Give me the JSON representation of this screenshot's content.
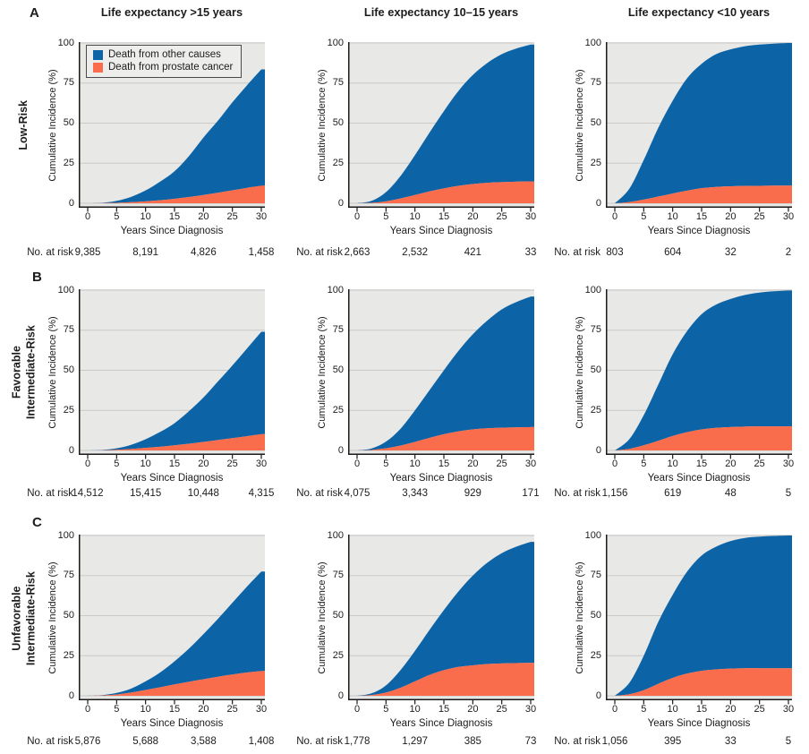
{
  "figure": {
    "column_titles": [
      "Life expectancy >15 years",
      "Life expectancy 10–15 years",
      "Life expectancy <10 years"
    ],
    "panel_letters": [
      "A",
      "B",
      "C"
    ],
    "row_labels": [
      [
        "Low-Risk"
      ],
      [
        "Favorable",
        "Intermediate-Risk"
      ],
      [
        "Unfavorable",
        "Intermediate-Risk"
      ]
    ],
    "y_axis_label": "Cumulative Incidence (%)",
    "x_axis_label": "Years Since Diagnosis",
    "no_at_risk_label": "No. at risk",
    "legend": {
      "items": [
        {
          "label": "Death from other causes",
          "color": "#0c64a7"
        },
        {
          "label": "Death from prostate cancer",
          "color": "#f96c4c"
        }
      ]
    },
    "colors": {
      "blue": "#0c64a7",
      "orange": "#f96c4c",
      "plot_bg": "#e8e8e6",
      "gridline": "#c9c9c7",
      "axis": "#1a1a1a",
      "text": "#1c1c1c"
    }
  },
  "chart_data": [
    {
      "type": "area",
      "stacking": "values are cumulative incidence %; 'Death from other causes' values are the stacked top edge (total mortality)",
      "row": "Low-Risk",
      "column": "Life expectancy >15 years",
      "x": [
        0,
        2.5,
        5,
        7.5,
        10,
        12.5,
        15,
        17.5,
        20,
        22.5,
        25,
        27.5,
        30
      ],
      "x_ticks": [
        0,
        5,
        10,
        15,
        20,
        25,
        30
      ],
      "y_ticks": [
        0,
        25,
        50,
        75,
        100
      ],
      "ylim": [
        0,
        100
      ],
      "series": [
        {
          "name": "Death from prostate cancer",
          "color_key": "orange",
          "values": [
            0,
            0.1,
            0.3,
            0.7,
            1.2,
            1.9,
            2.8,
            3.9,
            5.2,
            6.6,
            8.1,
            9.6,
            11
          ]
        },
        {
          "name": "Death from other causes",
          "color_key": "blue",
          "values": [
            0,
            0.3,
            1.5,
            4,
            8,
            13.5,
            20,
            29.5,
            41,
            51.5,
            63,
            73.5,
            83.5
          ]
        }
      ],
      "no_at_risk": {
        "years": [
          0,
          10,
          20,
          30
        ],
        "values": [
          "9,385",
          "8,191",
          "4,826",
          "1,458"
        ]
      }
    },
    {
      "type": "area",
      "row": "Low-Risk",
      "column": "Life expectancy 10–15 years",
      "x": [
        0,
        2.5,
        5,
        7.5,
        10,
        12.5,
        15,
        17.5,
        20,
        22.5,
        25,
        27.5,
        30
      ],
      "x_ticks": [
        0,
        5,
        10,
        15,
        20,
        25,
        30
      ],
      "y_ticks": [
        0,
        25,
        50,
        75,
        100
      ],
      "ylim": [
        0,
        100
      ],
      "series": [
        {
          "name": "Death from prostate cancer",
          "color_key": "orange",
          "values": [
            0,
            0.3,
            1.2,
            3,
            5.2,
            7.4,
            9.3,
            10.9,
            12,
            12.8,
            13.2,
            13.5,
            13.7
          ]
        },
        {
          "name": "Death from other causes",
          "color_key": "blue",
          "values": [
            0,
            1.5,
            7,
            17,
            30,
            44,
            57.5,
            70,
            80,
            87.5,
            93,
            96.5,
            99
          ]
        }
      ],
      "no_at_risk": {
        "years": [
          0,
          10,
          20,
          30
        ],
        "values": [
          "2,663",
          "2,532",
          "421",
          "33"
        ]
      }
    },
    {
      "type": "area",
      "row": "Low-Risk",
      "column": "Life expectancy <10 years",
      "x": [
        0,
        2.5,
        5,
        7.5,
        10,
        12.5,
        15,
        17.5,
        20,
        22.5,
        25,
        27.5,
        30
      ],
      "x_ticks": [
        0,
        5,
        10,
        15,
        20,
        25,
        30
      ],
      "y_ticks": [
        0,
        25,
        50,
        75,
        100
      ],
      "ylim": [
        0,
        100
      ],
      "series": [
        {
          "name": "Death from prostate cancer",
          "color_key": "orange",
          "values": [
            0,
            0.8,
            2.3,
            4.2,
            6.1,
            7.9,
            9.4,
            10.2,
            10.6,
            10.8,
            10.9,
            11,
            11
          ]
        },
        {
          "name": "Death from other causes",
          "color_key": "blue",
          "values": [
            0,
            9,
            27,
            47,
            64,
            78,
            87,
            93,
            96,
            98,
            99,
            99.6,
            100
          ]
        }
      ],
      "no_at_risk": {
        "years": [
          0,
          10,
          20,
          30
        ],
        "values": [
          "803",
          "604",
          "32",
          "2"
        ]
      }
    },
    {
      "type": "area",
      "row": "Favorable Intermediate-Risk",
      "column": "Life expectancy >15 years",
      "x": [
        0,
        2.5,
        5,
        7.5,
        10,
        12.5,
        15,
        17.5,
        20,
        22.5,
        25,
        27.5,
        30
      ],
      "x_ticks": [
        0,
        5,
        10,
        15,
        20,
        25,
        30
      ],
      "y_ticks": [
        0,
        25,
        50,
        75,
        100
      ],
      "ylim": [
        0,
        100
      ],
      "series": [
        {
          "name": "Death from prostate cancer",
          "color_key": "orange",
          "values": [
            0,
            0.1,
            0.4,
            0.9,
            1.6,
            2.3,
            3.2,
            4.2,
            5.3,
            6.5,
            7.7,
            8.9,
            10.2
          ]
        },
        {
          "name": "Death from other causes",
          "color_key": "blue",
          "values": [
            0,
            0.3,
            1.3,
            3.5,
            7,
            11.5,
            17,
            24.5,
            33,
            43,
            53,
            63.5,
            74
          ]
        }
      ],
      "no_at_risk": {
        "years": [
          0,
          10,
          20,
          30
        ],
        "values": [
          "14,512",
          "15,415",
          "10,448",
          "4,315"
        ]
      }
    },
    {
      "type": "area",
      "row": "Favorable Intermediate-Risk",
      "column": "Life expectancy 10–15 years",
      "x": [
        0,
        2.5,
        5,
        7.5,
        10,
        12.5,
        15,
        17.5,
        20,
        22.5,
        25,
        27.5,
        30
      ],
      "x_ticks": [
        0,
        5,
        10,
        15,
        20,
        25,
        30
      ],
      "y_ticks": [
        0,
        25,
        50,
        75,
        100
      ],
      "ylim": [
        0,
        100
      ],
      "series": [
        {
          "name": "Death from prostate cancer",
          "color_key": "orange",
          "values": [
            0,
            0.3,
            1.3,
            3,
            5.3,
            7.8,
            10.1,
            11.9,
            13.1,
            13.8,
            14.2,
            14.4,
            14.6
          ]
        },
        {
          "name": "Death from other causes",
          "color_key": "blue",
          "values": [
            0,
            1.2,
            5.5,
            13.5,
            25,
            37.5,
            50,
            62,
            72.5,
            81,
            88,
            92.5,
            96
          ]
        }
      ],
      "no_at_risk": {
        "years": [
          0,
          10,
          20,
          30
        ],
        "values": [
          "4,075",
          "3,343",
          "929",
          "171"
        ]
      }
    },
    {
      "type": "area",
      "row": "Favorable Intermediate-Risk",
      "column": "Life expectancy <10 years",
      "x": [
        0,
        2.5,
        5,
        7.5,
        10,
        12.5,
        15,
        17.5,
        20,
        22.5,
        25,
        27.5,
        30
      ],
      "x_ticks": [
        0,
        5,
        10,
        15,
        20,
        25,
        30
      ],
      "y_ticks": [
        0,
        25,
        50,
        75,
        100
      ],
      "ylim": [
        0,
        100
      ],
      "series": [
        {
          "name": "Death from prostate cancer",
          "color_key": "orange",
          "values": [
            0,
            1,
            3.2,
            6,
            9,
            11.4,
            13.1,
            14.1,
            14.6,
            14.9,
            15,
            15,
            15
          ]
        },
        {
          "name": "Death from other causes",
          "color_key": "blue",
          "values": [
            0,
            7,
            22,
            41,
            60,
            74.5,
            85,
            91,
            94.5,
            97,
            98.5,
            99.3,
            99.8
          ]
        }
      ],
      "no_at_risk": {
        "years": [
          0,
          10,
          20,
          30
        ],
        "values": [
          "1,156",
          "619",
          "48",
          "5"
        ]
      }
    },
    {
      "type": "area",
      "row": "Unfavorable Intermediate-Risk",
      "column": "Life expectancy >15 years",
      "x": [
        0,
        2.5,
        5,
        7.5,
        10,
        12.5,
        15,
        17.5,
        20,
        22.5,
        25,
        27.5,
        30
      ],
      "x_ticks": [
        0,
        5,
        10,
        15,
        20,
        25,
        30
      ],
      "y_ticks": [
        0,
        25,
        50,
        75,
        100
      ],
      "ylim": [
        0,
        100
      ],
      "series": [
        {
          "name": "Death from prostate cancer",
          "color_key": "orange",
          "values": [
            0,
            0.2,
            0.8,
            2,
            3.6,
            5.3,
            7.1,
            8.7,
            10.3,
            11.9,
            13.3,
            14.5,
            15.5
          ]
        },
        {
          "name": "Death from other causes",
          "color_key": "blue",
          "values": [
            0,
            0.4,
            1.8,
            4.5,
            9,
            14.5,
            21.5,
            29.5,
            38.5,
            48,
            58,
            68,
            77.5
          ]
        }
      ],
      "no_at_risk": {
        "years": [
          0,
          10,
          20,
          30
        ],
        "values": [
          "5,876",
          "5,688",
          "3,588",
          "1,408"
        ]
      }
    },
    {
      "type": "area",
      "row": "Unfavorable Intermediate-Risk",
      "column": "Life expectancy 10–15 years",
      "x": [
        0,
        2.5,
        5,
        7.5,
        10,
        12.5,
        15,
        17.5,
        20,
        22.5,
        25,
        27.5,
        30
      ],
      "x_ticks": [
        0,
        5,
        10,
        15,
        20,
        25,
        30
      ],
      "y_ticks": [
        0,
        25,
        50,
        75,
        100
      ],
      "ylim": [
        0,
        100
      ],
      "series": [
        {
          "name": "Death from prostate cancer",
          "color_key": "orange",
          "values": [
            0,
            0.5,
            2,
            5,
            9,
            13,
            16,
            18,
            19,
            19.8,
            20.2,
            20.4,
            20.5
          ]
        },
        {
          "name": "Death from other causes",
          "color_key": "blue",
          "values": [
            0,
            1.5,
            6.5,
            16,
            28,
            41,
            53.5,
            65,
            75,
            83,
            89,
            93,
            96
          ]
        }
      ],
      "no_at_risk": {
        "years": [
          0,
          10,
          20,
          30
        ],
        "values": [
          "1,778",
          "1,297",
          "385",
          "73"
        ]
      }
    },
    {
      "type": "area",
      "row": "Unfavorable Intermediate-Risk",
      "column": "Life expectancy <10 years",
      "x": [
        0,
        2.5,
        5,
        7.5,
        10,
        12.5,
        15,
        17.5,
        20,
        22.5,
        25,
        27.5,
        30
      ],
      "x_ticks": [
        0,
        5,
        10,
        15,
        20,
        25,
        30
      ],
      "y_ticks": [
        0,
        25,
        50,
        75,
        100
      ],
      "ylim": [
        0,
        100
      ],
      "series": [
        {
          "name": "Death from prostate cancer",
          "color_key": "orange",
          "values": [
            0,
            1,
            3.5,
            7.5,
            11.2,
            13.9,
            15.6,
            16.5,
            17,
            17.2,
            17.2,
            17.2,
            17.2
          ]
        },
        {
          "name": "Death from other causes",
          "color_key": "blue",
          "values": [
            0,
            8,
            25,
            46,
            63,
            77.5,
            87.5,
            93,
            96.5,
            98.5,
            99.3,
            99.7,
            100
          ]
        }
      ],
      "no_at_risk": {
        "years": [
          0,
          10,
          20,
          30
        ],
        "values": [
          "1,056",
          "395",
          "33",
          "5"
        ]
      }
    }
  ]
}
